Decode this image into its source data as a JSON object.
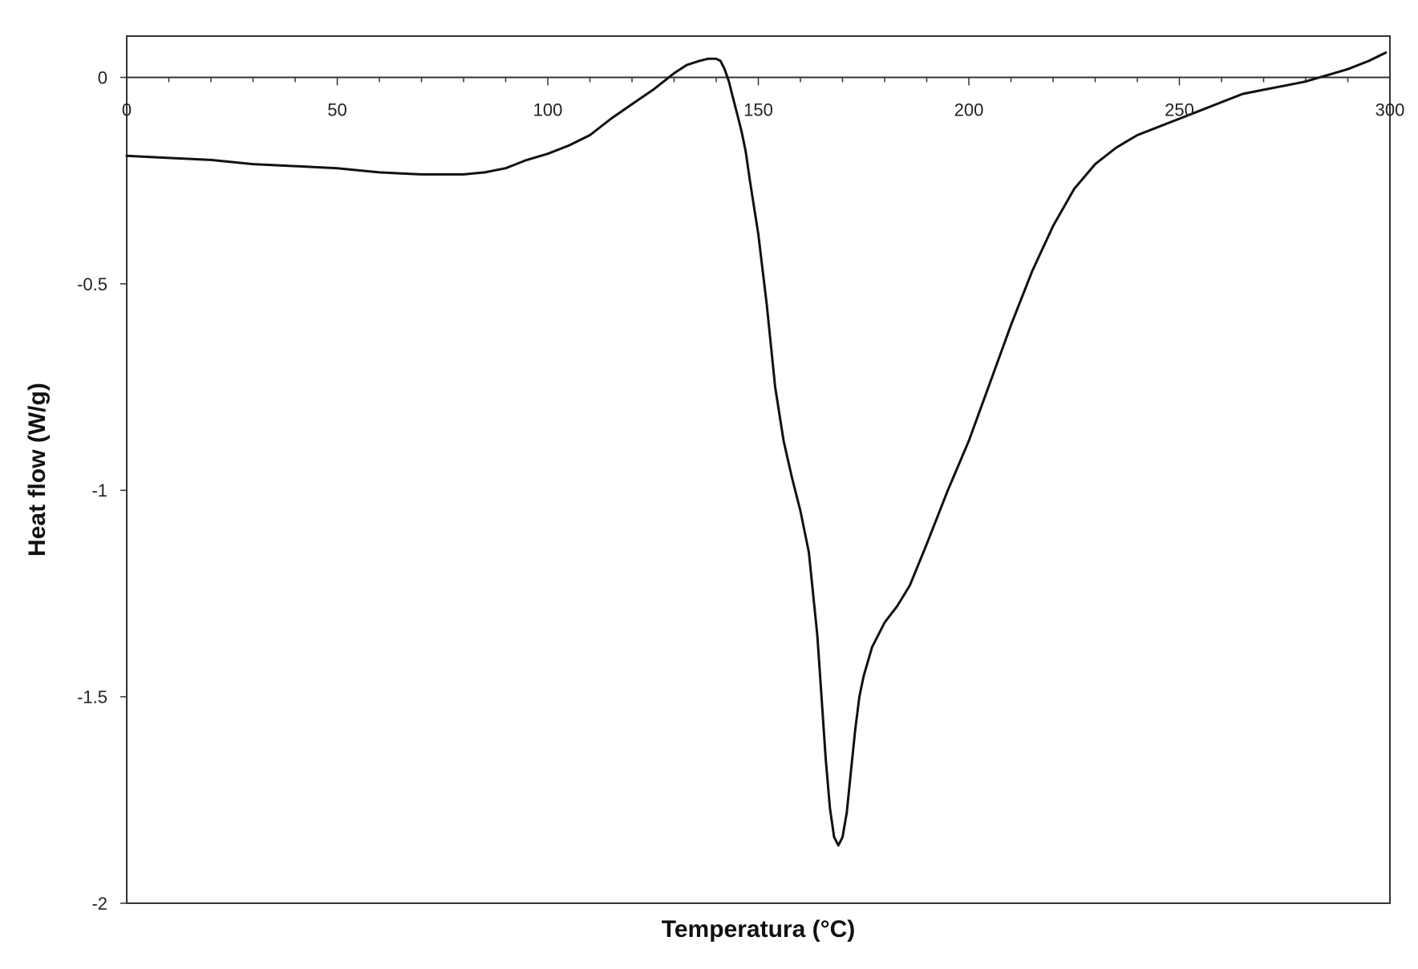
{
  "chart_data": {
    "type": "line",
    "title": "",
    "xlabel": "Temperatura (°C)",
    "ylabel": "Heat flow (W/g)",
    "xlim": [
      0,
      300
    ],
    "ylim": [
      -2,
      0.1
    ],
    "x_ticks": [
      0,
      50,
      100,
      150,
      200,
      250,
      300
    ],
    "x_tick_labels": [
      "0",
      "50",
      "100",
      "150",
      "200",
      "250",
      "300"
    ],
    "y_ticks": [
      0,
      -0.5,
      -1,
      -1.5,
      -2
    ],
    "y_tick_labels": [
      "0",
      "-0.5",
      "-1",
      "-1.5",
      "-2"
    ],
    "grid": false,
    "legend": "none",
    "line_color": "#111111",
    "series": [
      {
        "x": [
          0,
          10,
          20,
          30,
          40,
          50,
          60,
          70,
          75,
          80,
          85,
          90,
          95,
          100,
          105,
          110,
          115,
          120,
          125,
          130,
          133,
          136,
          138,
          140,
          141,
          142,
          143,
          144,
          145,
          146,
          147,
          148,
          150,
          152,
          154,
          156,
          158,
          160,
          162,
          164,
          165,
          166,
          167,
          168,
          169,
          170,
          171,
          172,
          173,
          174,
          175,
          177,
          180,
          183,
          186,
          190,
          195,
          200,
          205,
          210,
          215,
          220,
          225,
          230,
          235,
          240,
          245,
          250,
          255,
          260,
          265,
          270,
          275,
          280,
          285,
          290,
          295,
          299
        ],
        "y": [
          -0.19,
          -0.195,
          -0.2,
          -0.21,
          -0.215,
          -0.22,
          -0.23,
          -0.235,
          -0.235,
          -0.235,
          -0.23,
          -0.22,
          -0.2,
          -0.185,
          -0.165,
          -0.14,
          -0.1,
          -0.065,
          -0.03,
          0.01,
          0.03,
          0.04,
          0.045,
          0.045,
          0.04,
          0.02,
          -0.01,
          -0.05,
          -0.09,
          -0.13,
          -0.18,
          -0.25,
          -0.38,
          -0.55,
          -0.75,
          -0.88,
          -0.97,
          -1.05,
          -1.15,
          -1.35,
          -1.5,
          -1.65,
          -1.77,
          -1.84,
          -1.86,
          -1.84,
          -1.78,
          -1.68,
          -1.58,
          -1.5,
          -1.45,
          -1.38,
          -1.32,
          -1.28,
          -1.23,
          -1.13,
          -1.0,
          -0.88,
          -0.74,
          -0.6,
          -0.47,
          -0.36,
          -0.27,
          -0.21,
          -0.17,
          -0.14,
          -0.12,
          -0.1,
          -0.08,
          -0.06,
          -0.04,
          -0.03,
          -0.02,
          -0.01,
          0.005,
          0.02,
          0.04,
          0.06
        ]
      }
    ]
  }
}
